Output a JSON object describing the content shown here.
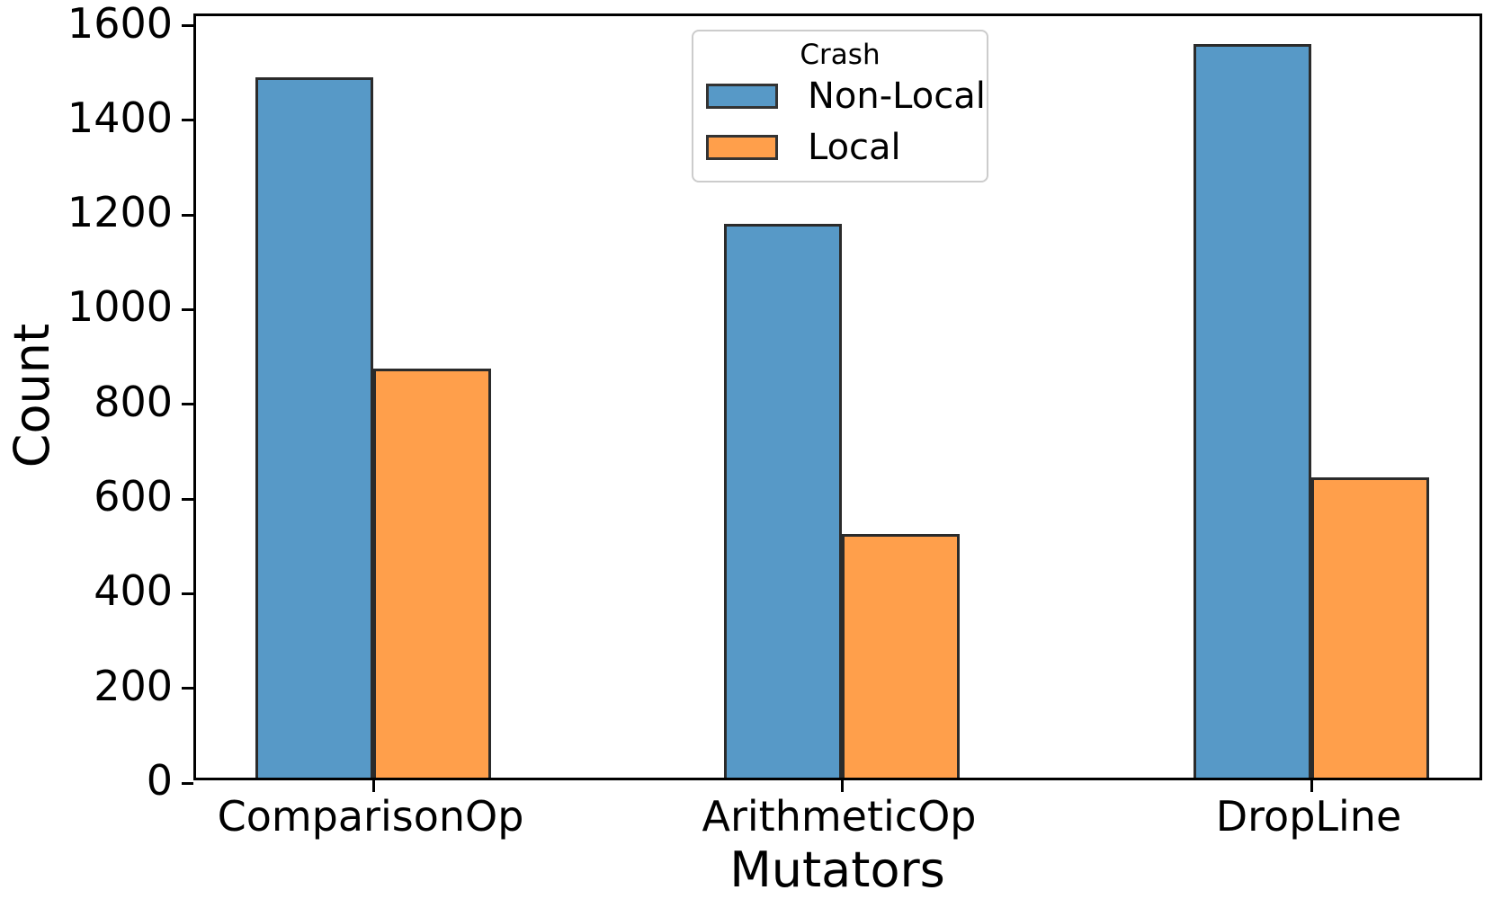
{
  "chart_data": {
    "type": "bar",
    "title": "",
    "xlabel": "Mutators",
    "ylabel": "Count",
    "categories": [
      "ComparisonOp",
      "ArithmeticOp",
      "DropLine"
    ],
    "series": [
      {
        "name": "Non-Local",
        "color": "#5799C7",
        "values": [
          1480,
          1170,
          1550
        ]
      },
      {
        "name": "Local",
        "color": "#FF9F4B",
        "values": [
          865,
          515,
          635
        ]
      }
    ],
    "legend": {
      "title": "Crash",
      "position": "upper center"
    },
    "ylim": [
      0,
      1620
    ],
    "yticks": [
      0,
      200,
      400,
      600,
      800,
      1000,
      1200,
      1400,
      1600
    ],
    "grid": false,
    "bar_edge_color": "#2b2b2b",
    "axis_color": "#000000"
  }
}
